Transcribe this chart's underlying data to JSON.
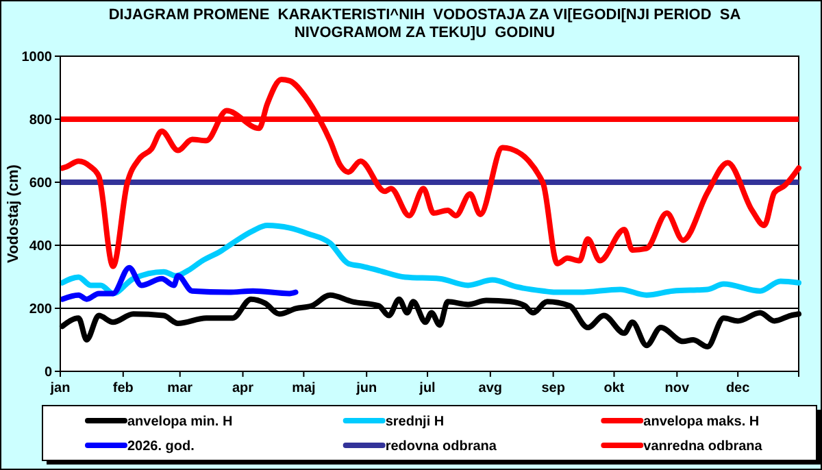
{
  "chart_data": {
    "type": "line",
    "title": "DIJAGRAM PROMENE  KARAKTERISTI^NIH  VODOSTAJA ZA VI[EGODI[NJI PERIOD  SA\nNIVOGRAMOM ZA TEKU]U  GODINU",
    "ylabel": "Vodostaj (cm)",
    "xlim": [
      "--01-01",
      "--12-31"
    ],
    "xticks": [
      {
        "value": "--01-01",
        "label": "jan"
      },
      {
        "value": "--02-01",
        "label": "feb"
      },
      {
        "value": "--03-01",
        "label": "mar"
      },
      {
        "value": "--04-01",
        "label": "apr"
      },
      {
        "value": "--05-01",
        "label": "maj"
      },
      {
        "value": "--06-01",
        "label": "jun"
      },
      {
        "value": "--07-01",
        "label": "jul"
      },
      {
        "value": "--08-01",
        "label": "avg"
      },
      {
        "value": "--09-01",
        "label": "sep"
      },
      {
        "value": "--10-01",
        "label": "okt"
      },
      {
        "value": "--11-01",
        "label": "nov"
      },
      {
        "value": "--12-01",
        "label": "dec"
      },
      {
        "value": "--12-31",
        "label": null
      }
    ],
    "ylim": [
      0,
      1000
    ],
    "yticks": [
      0,
      200,
      400,
      600,
      800,
      1000
    ],
    "grid": "y",
    "legend": "bottom",
    "marker": "none",
    "line_style": "solid",
    "series": [
      {
        "name": "anvelopa min. H",
        "color": "#000000",
        "x": [
          "--01-02",
          "--01-10",
          "--01-14",
          "--01-20",
          "--01-27",
          "--02-06",
          "--02-21",
          "--02-28",
          "--03-14",
          "--03-27",
          "--04-05",
          "--04-12",
          "--04-19",
          "--04-27",
          "--05-05",
          "--05-14",
          "--05-25",
          "--06-07",
          "--06-12",
          "--06-17",
          "--06-21",
          "--06-24",
          "--06-30",
          "--07-03",
          "--07-07",
          "--07-11",
          "--07-21",
          "--07-30",
          "--08-11",
          "--08-18",
          "--08-22",
          "--08-29",
          "--09-09",
          "--09-18",
          "--09-26",
          "--10-06",
          "--10-10",
          "--10-17",
          "--10-24",
          "--11-04",
          "--11-09",
          "--11-16",
          "--11-24",
          "--12-01",
          "--12-12",
          "--12-19",
          "--12-27",
          "--12-31"
        ],
        "values": [
          143,
          169,
          100,
          177,
          156,
          182,
          177,
          152,
          169,
          169,
          229,
          216,
          182,
          199,
          208,
          242,
          221,
          208,
          177,
          229,
          186,
          221,
          156,
          186,
          147,
          221,
          212,
          225,
          221,
          208,
          186,
          221,
          208,
          139,
          177,
          121,
          156,
          82,
          139,
          95,
          100,
          78,
          169,
          160,
          186,
          160,
          177,
          182
        ]
      },
      {
        "name": "srednji H",
        "color": "#00ccff",
        "x": [
          "--01-02",
          "--01-10",
          "--01-16",
          "--01-21",
          "--01-27",
          "--02-06",
          "--02-21",
          "--02-27",
          "--03-05",
          "--03-12",
          "--03-21",
          "--03-27",
          "--04-06",
          "--04-13",
          "--04-24",
          "--05-03",
          "--05-14",
          "--05-23",
          "--05-30",
          "--06-07",
          "--06-20",
          "--07-07",
          "--07-21",
          "--08-02",
          "--08-14",
          "--08-27",
          "--09-02",
          "--09-14",
          "--10-04",
          "--10-17",
          "--10-30",
          "--11-16",
          "--11-24",
          "--12-12",
          "--12-22",
          "--12-31"
        ],
        "values": [
          281,
          299,
          273,
          273,
          247,
          294,
          316,
          303,
          320,
          351,
          381,
          407,
          446,
          463,
          455,
          437,
          407,
          342,
          333,
          320,
          299,
          294,
          273,
          290,
          268,
          255,
          251,
          251,
          260,
          242,
          255,
          260,
          277,
          255,
          286,
          281
        ]
      },
      {
        "name": "anvelopa maks. H",
        "color": "#ff0000",
        "x": [
          "--01-02",
          "--01-04",
          "--01-10",
          "--01-16",
          "--01-20",
          "--01-27",
          "--02-03",
          "--02-09",
          "--02-15",
          "--02-20",
          "--02-28",
          "--03-07",
          "--03-14",
          "--03-24",
          "--04-09",
          "--04-13",
          "--04-20",
          "--04-24",
          "--05-02",
          "--05-09",
          "--05-14",
          "--05-19",
          "--05-23",
          "--05-29",
          "--06-10",
          "--06-13",
          "--06-22",
          "--06-29",
          "--07-04",
          "--07-11",
          "--07-15",
          "--07-22",
          "--07-27",
          "--08-07",
          "--08-11",
          "--08-20",
          "--08-26",
          "--08-27",
          "--09-03",
          "--09-08",
          "--09-14",
          "--09-18",
          "--09-24",
          "--10-06",
          "--10-10",
          "--10-17",
          "--10-27",
          "--11-04",
          "--11-16",
          "--11-26",
          "--12-08",
          "--12-14",
          "--12-19",
          "--12-24",
          "--12-31"
        ],
        "values": [
          645,
          649,
          667,
          649,
          619,
          333,
          597,
          675,
          706,
          762,
          701,
          736,
          732,
          827,
          771,
          848,
          926,
          922,
          870,
          797,
          732,
          654,
          632,
          667,
          571,
          580,
          494,
          580,
          502,
          511,
          494,
          563,
          498,
          710,
          706,
          667,
          610,
          597,
          342,
          359,
          351,
          420,
          351,
          450,
          385,
          390,
          502,
          416,
          567,
          662,
          511,
          463,
          567,
          589,
          645
        ]
      },
      {
        "name": "2026. god.",
        "color": "#0000ff",
        "x": [
          "--01-02",
          "--01-10",
          "--01-14",
          "--01-20",
          "--01-27",
          "--02-04",
          "--02-10",
          "--02-20",
          "--02-26",
          "--02-28",
          "--03-07",
          "--03-25",
          "--04-06",
          "--04-24",
          "--04-27"
        ],
        "values": [
          229,
          242,
          229,
          247,
          247,
          329,
          273,
          294,
          273,
          303,
          255,
          251,
          255,
          247,
          251
        ]
      }
    ],
    "ref_lines": [
      {
        "axis": "y",
        "value": 600,
        "label": "redovna odbrana",
        "color": "#333399"
      },
      {
        "axis": "y",
        "value": 800,
        "label": "vanredna odbrana",
        "color": "#ff0000"
      }
    ]
  }
}
